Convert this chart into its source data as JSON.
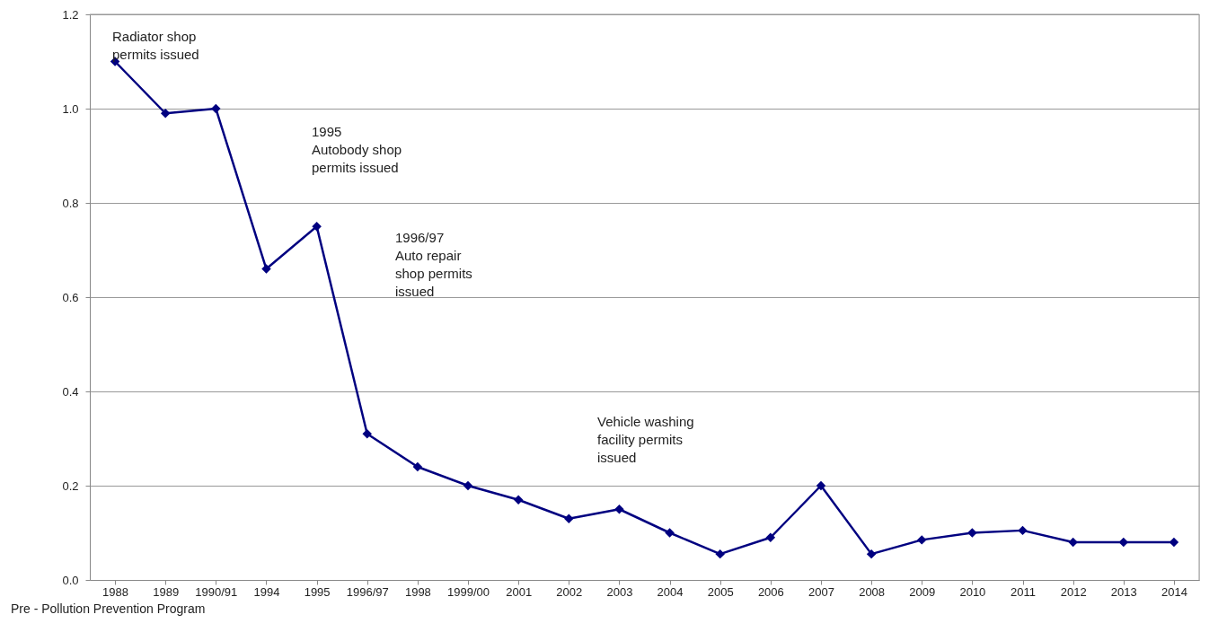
{
  "chart_data": {
    "type": "line",
    "categories": [
      "1988",
      "1989",
      "1990/91",
      "1994",
      "1995",
      "1996/97",
      "1998",
      "1999/00",
      "2001",
      "2002",
      "2003",
      "2004",
      "2005",
      "2006",
      "2007",
      "2008",
      "2009",
      "2010",
      "2011",
      "2012",
      "2013",
      "2014"
    ],
    "series": [
      {
        "color": "#000080",
        "values": [
          1.1,
          0.99,
          1.0,
          0.66,
          0.75,
          0.31,
          0.24,
          0.2,
          0.17,
          0.13,
          0.15,
          0.1,
          0.055,
          0.09,
          0.2,
          0.055,
          0.085,
          0.1,
          0.105,
          0.08,
          0.08,
          0.08
        ]
      }
    ],
    "ylim": [
      0,
      1.2
    ],
    "yticks": [
      {
        "value": 0,
        "label": "0.0"
      },
      {
        "value": 0.2,
        "label": "0.2"
      },
      {
        "value": 0.4,
        "label": "0.4"
      },
      {
        "value": 0.6,
        "label": "0.6"
      },
      {
        "value": 0.8,
        "label": "0.8"
      },
      {
        "value": 1.0,
        "label": "1.0"
      },
      {
        "value": 1.2,
        "label": "1.2"
      }
    ],
    "grid": "y",
    "marker": "diamond",
    "line_style": "solid",
    "annotations": [
      "Radiator shop\npermits issued",
      "1995\nAutobody shop\npermits issued",
      "1996/97\nAuto repair\nshop permits\nissued",
      "Vehicle washing\nfacility permits\nissued",
      "Pre - Pollution Prevention Program"
    ]
  }
}
